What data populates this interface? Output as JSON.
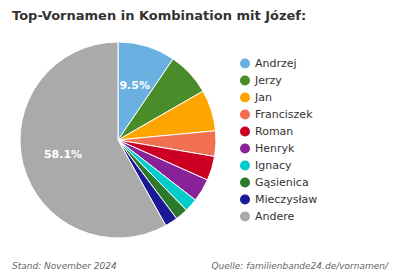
{
  "chart_data": {
    "type": "pie",
    "title": "Top-Vornamen in Kombination mit Józef:",
    "categories": [
      "Andrzej",
      "Jerzy",
      "Jan",
      "Franciszek",
      "Roman",
      "Henryk",
      "Ignacy",
      "Gąsienica",
      "Mieczysław",
      "Andere"
    ],
    "values": [
      9.5,
      7.2,
      6.8,
      4.2,
      4.0,
      3.8,
      2.2,
      2.1,
      2.1,
      58.1
    ],
    "value_labels": [
      "9.5%",
      null,
      null,
      null,
      null,
      null,
      null,
      null,
      null,
      "58.1%"
    ],
    "colors": [
      "#6ab0e0",
      "#4a8b2a",
      "#ffa500",
      "#f07050",
      "#cc0022",
      "#882299",
      "#00cccc",
      "#2a7a2a",
      "#1a1a99",
      "#aaaaaa"
    ],
    "data_labels": true,
    "legend": "right",
    "annotations": [
      "Stand: November 2024",
      "Quelle: familienbande24.de/vornamen/"
    ]
  }
}
